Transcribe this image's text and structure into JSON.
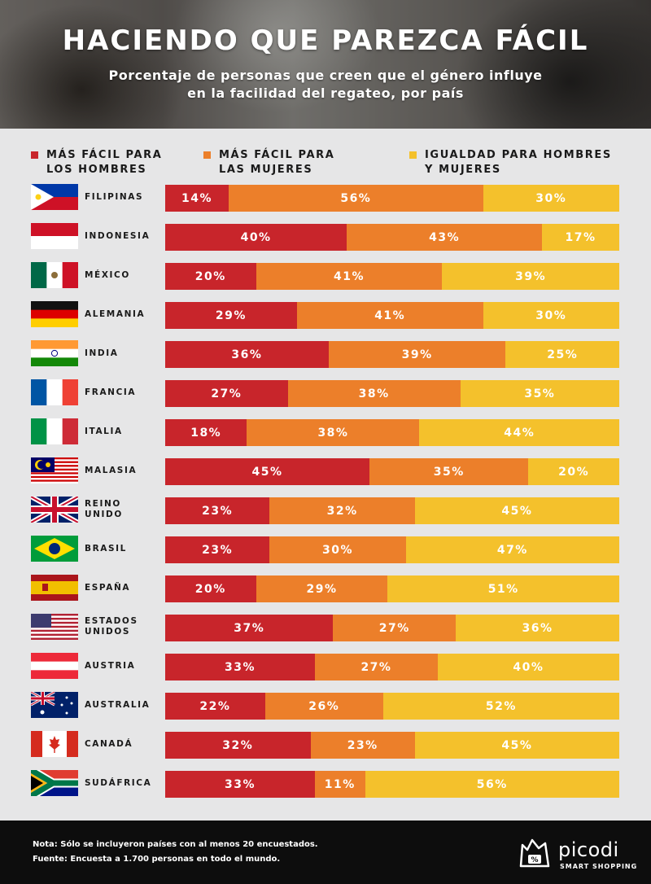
{
  "title": "HACIENDO QUE PAREZCA FÁCIL",
  "subtitle": "Porcentaje de personas que creen que el género influye\nen la facilidad del regateo, por país",
  "colors": {
    "men": "#c8252b",
    "women": "#ec7f2a",
    "equal": "#f4c12c"
  },
  "chart_data": {
    "type": "bar",
    "orientation": "horizontal",
    "stacked": true,
    "unit": "%",
    "xlim": [
      0,
      100
    ],
    "legend": "top",
    "series_labels": [
      "MÁS FÁCIL PARA\nLOS HOMBRES",
      "MÁS FÁCIL PARA\nLAS MUJERES",
      "IGUALDAD PARA HOMBRES\nY MUJERES"
    ],
    "categories": [
      "FILIPINAS",
      "INDONESIA",
      "MÉXICO",
      "ALEMANIA",
      "INDIA",
      "FRANCIA",
      "ITALIA",
      "MALASIA",
      "REINO UNIDO",
      "BRASIL",
      "ESPAÑA",
      "ESTADOS\nUNIDOS",
      "AUSTRIA",
      "AUSTRALIA",
      "CANADÁ",
      "SUDÁFRICA"
    ],
    "flag_icons": [
      "philippines-flag-icon",
      "indonesia-flag-icon",
      "mexico-flag-icon",
      "germany-flag-icon",
      "india-flag-icon",
      "france-flag-icon",
      "italy-flag-icon",
      "malaysia-flag-icon",
      "uk-flag-icon",
      "brazil-flag-icon",
      "spain-flag-icon",
      "usa-flag-icon",
      "austria-flag-icon",
      "australia-flag-icon",
      "canada-flag-icon",
      "south-africa-flag-icon"
    ],
    "series": [
      {
        "name": "MÁS FÁCIL PARA LOS HOMBRES",
        "values": [
          14,
          40,
          20,
          29,
          36,
          27,
          18,
          45,
          23,
          23,
          20,
          37,
          33,
          22,
          32,
          33
        ]
      },
      {
        "name": "MÁS FÁCIL PARA LAS MUJERES",
        "values": [
          56,
          43,
          41,
          41,
          39,
          38,
          38,
          35,
          32,
          30,
          29,
          27,
          27,
          26,
          23,
          11
        ]
      },
      {
        "name": "IGUALDAD PARA HOMBRES Y MUJERES",
        "values": [
          30,
          17,
          39,
          30,
          25,
          35,
          44,
          20,
          45,
          47,
          51,
          36,
          40,
          52,
          45,
          56
        ]
      }
    ]
  },
  "footer": {
    "note": "Nota: Sólo se incluyeron países con al menos 20 encuestados.",
    "source": "Fuente: Encuesta a 1.700 personas en todo el mundo.",
    "logo_name": "picodi",
    "logo_tagline": "SMART SHOPPING"
  }
}
